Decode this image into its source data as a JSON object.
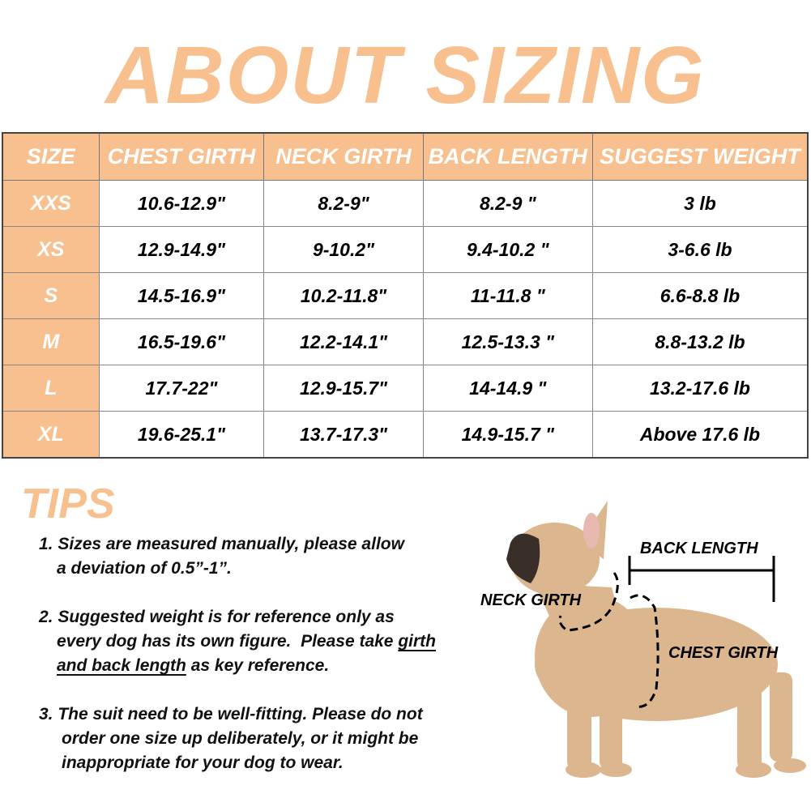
{
  "title": "ABOUT SIZING",
  "colors": {
    "accent": "#f8c08e",
    "text": "#000000"
  },
  "table": {
    "headers": [
      "SIZE",
      "CHEST GIRTH",
      "NECK GIRTH",
      "BACK LENGTH",
      "SUGGEST WEIGHT"
    ],
    "rows": [
      [
        "XXS",
        "10.6-12.9\"",
        "8.2-9\"",
        "8.2-9 \"",
        "3 lb"
      ],
      [
        "XS",
        "12.9-14.9\"",
        "9-10.2\"",
        "9.4-10.2 \"",
        "3-6.6 lb"
      ],
      [
        "S",
        "14.5-16.9\"",
        "10.2-11.8\"",
        "11-11.8 \"",
        "6.6-8.8 lb"
      ],
      [
        "M",
        "16.5-19.6\"",
        "12.2-14.1\"",
        "12.5-13.3 \"",
        "8.8-13.2 lb"
      ],
      [
        "L",
        "17.7-22\"",
        "12.9-15.7\"",
        "14-14.9 \"",
        "13.2-17.6 lb"
      ],
      [
        "XL",
        "19.6-25.1\"",
        "13.7-17.3\"",
        "14.9-15.7 \"",
        "Above 17.6 lb"
      ]
    ]
  },
  "tips": {
    "title": "TIPS",
    "tip1": {
      "line1": "1. Sizes are measured manually, please allow",
      "line2": "a deviation of 0.5”-1”."
    },
    "tip2": {
      "line1": "2. Suggested weight is for reference only as",
      "line2a": "every dog has its own figure.  Please take ",
      "line2u": "girth",
      "line3u": "and back length",
      "line3b": " as key reference."
    },
    "tip3": {
      "line1": "3. The suit need to be well-fitting. Please do not",
      "line2": "order one size up deliberately, or it might be",
      "line3": "inappropriate for your dog to wear."
    }
  },
  "diagram": {
    "back_length": "BACK LENGTH",
    "neck_girth": "NECK GIRTH",
    "chest_girth": "CHEST GIRTH"
  }
}
